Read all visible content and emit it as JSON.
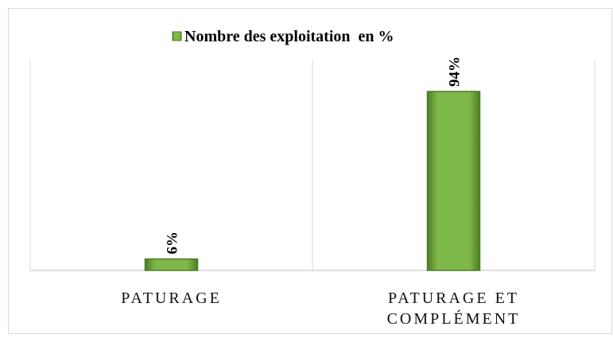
{
  "chart_data": {
    "type": "bar",
    "categories": [
      "PATURAGE",
      "PATURAGE ET COMPLÉMENT"
    ],
    "series": [
      {
        "name": "Nombre des exploitation  en %",
        "color": "#6aa136",
        "values": [
          6,
          94
        ],
        "value_labels": [
          "6%",
          "94%"
        ]
      }
    ]
  }
}
